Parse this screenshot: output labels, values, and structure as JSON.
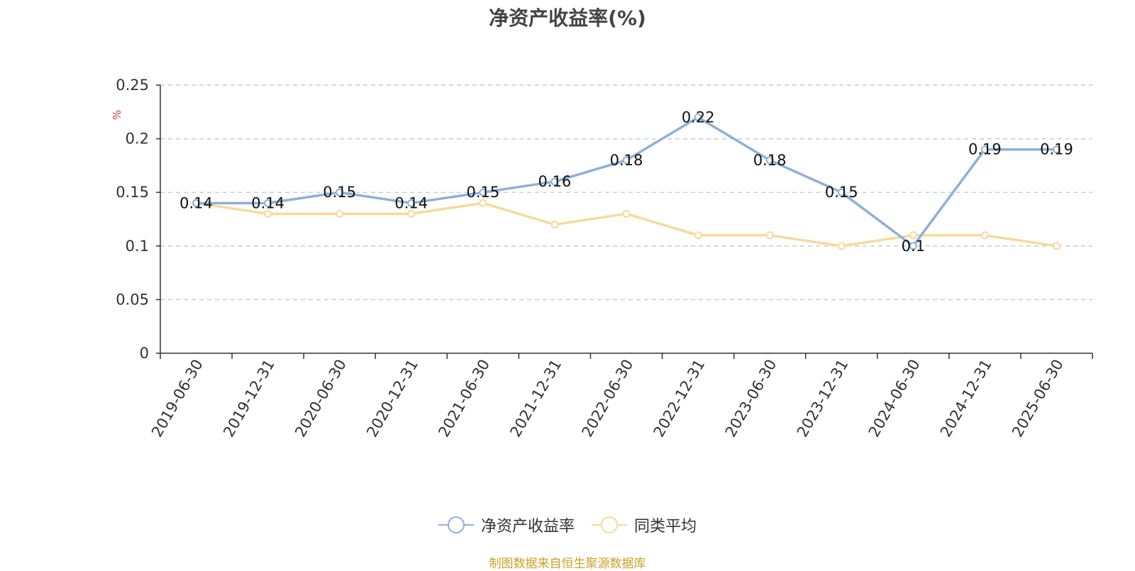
{
  "chart_data": {
    "type": "line",
    "title": "净资产收益率(%)",
    "ylabel": "%",
    "ylim": [
      0,
      0.25
    ],
    "yticks": [
      "0",
      "0.05",
      "0.1",
      "0.15",
      "0.2",
      "0.25"
    ],
    "grid": true,
    "legend_position": "bottom",
    "categories": [
      "2019-06-30",
      "2019-12-31",
      "2020-06-30",
      "2020-12-31",
      "2021-06-30",
      "2021-12-31",
      "2022-06-30",
      "2022-12-31",
      "2023-06-30",
      "2023-12-31",
      "2024-06-30",
      "2024-12-31",
      "2025-06-30"
    ],
    "series": [
      {
        "name": "净资产收益率",
        "color": "#8eb0d9",
        "values": [
          0.14,
          0.14,
          0.15,
          0.14,
          0.15,
          0.16,
          0.18,
          0.22,
          0.18,
          0.15,
          0.1,
          0.19,
          0.19
        ],
        "data_labels": [
          "0.14",
          "0.14",
          "0.15",
          "0.14",
          "0.15",
          "0.16",
          "0.18",
          "0.22",
          "0.18",
          "0.15",
          "0.1",
          "0.19",
          "0.19"
        ]
      },
      {
        "name": "同类平均",
        "color": "#f9d99a",
        "values": [
          0.14,
          0.13,
          0.13,
          0.13,
          0.14,
          0.12,
          0.13,
          0.11,
          0.11,
          0.1,
          0.11,
          0.11,
          0.1
        ]
      }
    ]
  },
  "ylabel_color": "#e03030",
  "source_note": "制图数据来自恒生聚源数据库",
  "source_note_color": "#c9a227"
}
